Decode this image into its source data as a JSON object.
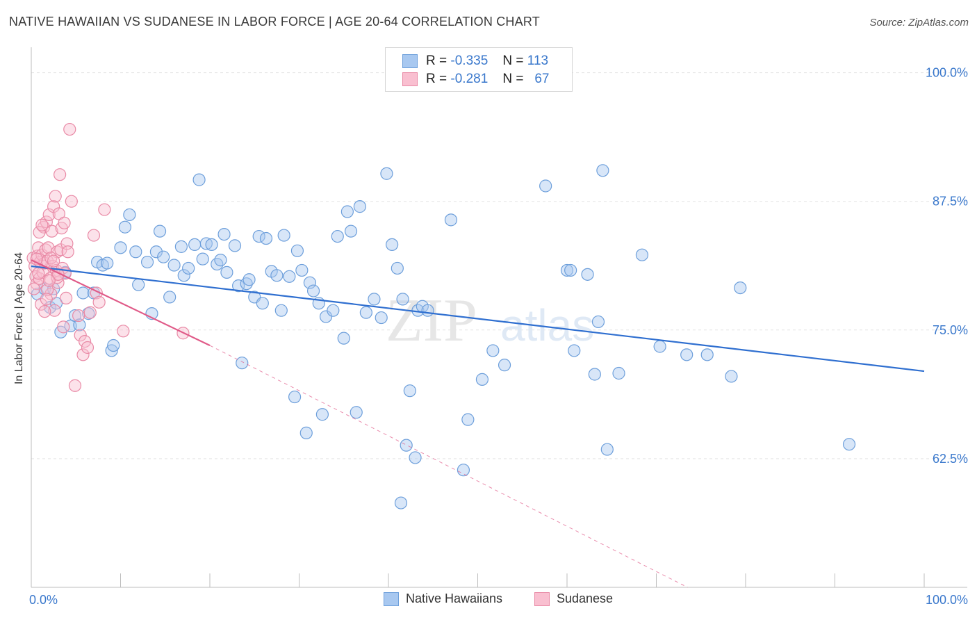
{
  "title": "NATIVE HAWAIIAN VS SUDANESE IN LABOR FORCE | AGE 20-64 CORRELATION CHART",
  "source": "Source: ZipAtlas.com",
  "watermark": "ZIPatlas",
  "legend": {
    "rows": [
      {
        "r_label": "R =",
        "r_value": "-0.335",
        "n_label": "N =",
        "n_value": "113",
        "color": "#a8c8f0",
        "border": "#6d9fdb"
      },
      {
        "r_label": "R =",
        "r_value": "-0.281",
        "n_label": "N =",
        "n_value": "67",
        "color": "#f9bfd0",
        "border": "#e98aa6"
      }
    ]
  },
  "bottom_legend": [
    {
      "label": "Native Hawaiians",
      "color": "#a8c8f0",
      "border": "#6d9fdb"
    },
    {
      "label": "Sudanese",
      "color": "#f9bfd0",
      "border": "#e98aa6"
    }
  ],
  "chart_data": {
    "type": "scatter",
    "title": "NATIVE HAWAIIAN VS SUDANESE IN LABOR FORCE | AGE 20-64 CORRELATION CHART",
    "xlabel": "",
    "ylabel": "In Labor Force | Age 20-64",
    "xlim": [
      0,
      100
    ],
    "ylim": [
      50,
      102
    ],
    "x_tick_labels": [
      "0.0%",
      "100.0%"
    ],
    "y_ticks": [
      62.5,
      75.0,
      87.5,
      100.0
    ],
    "y_tick_labels": [
      "62.5%",
      "75.0%",
      "87.5%",
      "100.0%"
    ],
    "grid": true,
    "series": [
      {
        "name": "Native Hawaiians",
        "color": "#6d9fdb",
        "fill": "#a8c8f0",
        "trend": {
          "x": [
            0,
            100
          ],
          "y": [
            81.2,
            71.0
          ],
          "color": "#2f6fd0"
        },
        "points": [
          [
            0.7,
            78.5
          ],
          [
            1.5,
            79.0
          ],
          [
            2.1,
            77.2
          ],
          [
            2.5,
            79.0
          ],
          [
            2.8,
            77.6
          ],
          [
            3.3,
            74.8
          ],
          [
            3.8,
            80.6
          ],
          [
            4.4,
            75.4
          ],
          [
            4.9,
            76.4
          ],
          [
            5.4,
            75.5
          ],
          [
            5.8,
            78.6
          ],
          [
            6.4,
            76.6
          ],
          [
            7.0,
            78.6
          ],
          [
            7.4,
            81.6
          ],
          [
            8.0,
            81.3
          ],
          [
            8.5,
            81.5
          ],
          [
            9.0,
            73.0
          ],
          [
            9.2,
            73.5
          ],
          [
            10.0,
            83.0
          ],
          [
            10.5,
            85.0
          ],
          [
            11.0,
            86.2
          ],
          [
            11.7,
            82.6
          ],
          [
            12.0,
            79.4
          ],
          [
            13.0,
            81.6
          ],
          [
            13.5,
            76.6
          ],
          [
            14.0,
            82.6
          ],
          [
            14.4,
            84.6
          ],
          [
            14.8,
            82.1
          ],
          [
            15.5,
            78.2
          ],
          [
            16.0,
            81.3
          ],
          [
            16.8,
            83.1
          ],
          [
            17.1,
            80.3
          ],
          [
            17.6,
            81.0
          ],
          [
            18.3,
            83.3
          ],
          [
            18.8,
            89.6
          ],
          [
            19.2,
            81.9
          ],
          [
            19.6,
            83.4
          ],
          [
            20.2,
            83.3
          ],
          [
            20.8,
            81.4
          ],
          [
            21.2,
            81.8
          ],
          [
            21.6,
            84.3
          ],
          [
            21.9,
            80.6
          ],
          [
            22.8,
            83.2
          ],
          [
            23.2,
            79.3
          ],
          [
            23.6,
            71.8
          ],
          [
            24.1,
            79.5
          ],
          [
            24.4,
            79.9
          ],
          [
            25.0,
            78.2
          ],
          [
            25.5,
            84.1
          ],
          [
            25.9,
            77.6
          ],
          [
            26.3,
            83.9
          ],
          [
            26.9,
            80.7
          ],
          [
            27.5,
            80.3
          ],
          [
            28.0,
            76.9
          ],
          [
            28.3,
            84.2
          ],
          [
            28.9,
            80.2
          ],
          [
            29.5,
            68.5
          ],
          [
            29.8,
            82.7
          ],
          [
            30.3,
            80.8
          ],
          [
            30.8,
            65.0
          ],
          [
            31.2,
            79.6
          ],
          [
            31.6,
            78.8
          ],
          [
            32.2,
            77.6
          ],
          [
            32.6,
            66.8
          ],
          [
            33.0,
            76.3
          ],
          [
            33.8,
            76.9
          ],
          [
            34.3,
            84.1
          ],
          [
            35.0,
            74.2
          ],
          [
            35.4,
            86.5
          ],
          [
            35.8,
            84.6
          ],
          [
            36.4,
            67.0
          ],
          [
            36.8,
            87.0
          ],
          [
            37.5,
            76.7
          ],
          [
            38.4,
            78.0
          ],
          [
            39.2,
            76.2
          ],
          [
            39.8,
            90.2
          ],
          [
            40.4,
            83.3
          ],
          [
            41.0,
            81.0
          ],
          [
            41.6,
            78.0
          ],
          [
            42.4,
            69.1
          ],
          [
            42.0,
            63.8
          ],
          [
            43.0,
            62.6
          ],
          [
            43.3,
            76.9
          ],
          [
            43.8,
            77.3
          ],
          [
            44.4,
            76.9
          ],
          [
            47.0,
            85.7
          ],
          [
            48.4,
            61.4
          ],
          [
            48.9,
            66.3
          ],
          [
            50.5,
            70.2
          ],
          [
            51.7,
            73.0
          ],
          [
            53.0,
            71.6
          ],
          [
            57.6,
            89.0
          ],
          [
            60.0,
            80.8
          ],
          [
            60.4,
            80.8
          ],
          [
            60.8,
            73.0
          ],
          [
            62.3,
            80.4
          ],
          [
            63.1,
            70.7
          ],
          [
            63.5,
            75.8
          ],
          [
            64.0,
            90.5
          ],
          [
            64.5,
            63.4
          ],
          [
            65.8,
            70.8
          ],
          [
            68.4,
            82.3
          ],
          [
            70.4,
            73.4
          ],
          [
            73.4,
            72.6
          ],
          [
            75.7,
            72.6
          ],
          [
            78.4,
            70.5
          ],
          [
            79.4,
            79.1
          ],
          [
            91.6,
            63.9
          ],
          [
            41.4,
            58.2
          ]
        ]
      },
      {
        "name": "Sudanese",
        "color": "#e98aa6",
        "fill": "#f9bfd0",
        "trend": {
          "x": [
            0,
            20
          ],
          "y": [
            81.8,
            73.5
          ],
          "color": "#e05a88"
        },
        "trend_extension": {
          "x": [
            20,
            73.5
          ],
          "y": [
            73.5,
            50.0
          ]
        },
        "points": [
          [
            0.2,
            82.0
          ],
          [
            0.4,
            81.2
          ],
          [
            0.5,
            80.2
          ],
          [
            0.6,
            79.5
          ],
          [
            0.7,
            82.2
          ],
          [
            0.8,
            83.0
          ],
          [
            0.9,
            80.0
          ],
          [
            1.0,
            81.6
          ],
          [
            1.1,
            77.5
          ],
          [
            1.2,
            82.3
          ],
          [
            1.3,
            80.6
          ],
          [
            1.4,
            85.0
          ],
          [
            1.5,
            81.5
          ],
          [
            1.6,
            82.8
          ],
          [
            1.7,
            85.5
          ],
          [
            1.8,
            81.7
          ],
          [
            1.9,
            83.0
          ],
          [
            2.0,
            86.2
          ],
          [
            2.1,
            80.0
          ],
          [
            2.2,
            78.5
          ],
          [
            2.3,
            84.6
          ],
          [
            2.4,
            81.2
          ],
          [
            2.5,
            87.0
          ],
          [
            2.6,
            76.9
          ],
          [
            2.7,
            88.0
          ],
          [
            2.8,
            80.8
          ],
          [
            2.9,
            82.6
          ],
          [
            3.0,
            79.6
          ],
          [
            3.1,
            86.3
          ],
          [
            3.2,
            90.1
          ],
          [
            3.3,
            82.8
          ],
          [
            3.4,
            84.9
          ],
          [
            3.5,
            81.0
          ],
          [
            3.6,
            75.3
          ],
          [
            3.7,
            85.4
          ],
          [
            3.8,
            80.5
          ],
          [
            3.9,
            78.1
          ],
          [
            4.0,
            83.4
          ],
          [
            4.1,
            82.6
          ],
          [
            4.3,
            94.5
          ],
          [
            4.5,
            87.5
          ],
          [
            4.9,
            69.6
          ],
          [
            5.3,
            76.4
          ],
          [
            5.5,
            74.5
          ],
          [
            5.8,
            72.6
          ],
          [
            6.0,
            73.9
          ],
          [
            6.3,
            73.3
          ],
          [
            6.6,
            76.7
          ],
          [
            7.0,
            84.2
          ],
          [
            7.3,
            78.6
          ],
          [
            7.6,
            77.7
          ],
          [
            8.2,
            86.7
          ],
          [
            10.3,
            74.9
          ],
          [
            17.0,
            74.7
          ],
          [
            0.3,
            79.0
          ],
          [
            0.9,
            84.5
          ],
          [
            1.8,
            78.9
          ],
          [
            2.9,
            80.1
          ],
          [
            1.2,
            85.2
          ],
          [
            0.6,
            81.9
          ],
          [
            1.5,
            76.8
          ],
          [
            2.2,
            82.0
          ],
          [
            2.5,
            81.7
          ],
          [
            3.0,
            80.4
          ],
          [
            0.8,
            80.5
          ],
          [
            1.7,
            78.0
          ],
          [
            2.0,
            79.8
          ]
        ]
      }
    ]
  }
}
